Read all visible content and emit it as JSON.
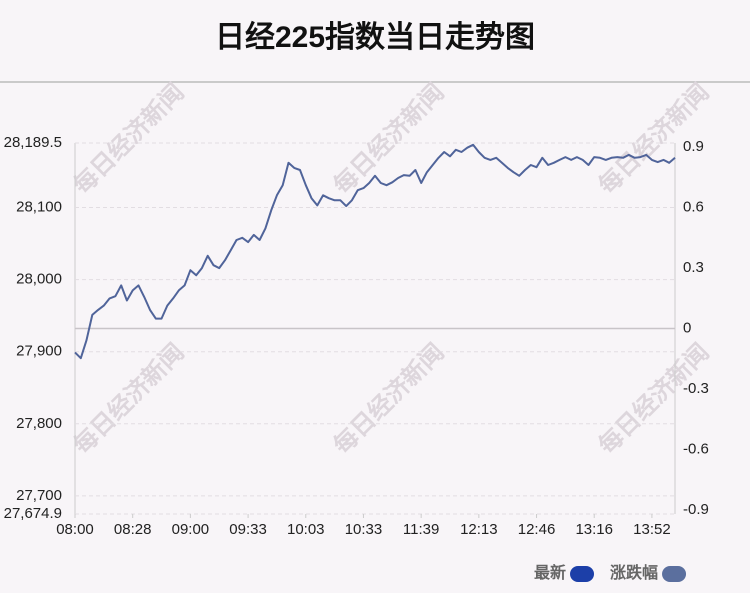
{
  "chart_data": {
    "type": "line",
    "title": "日经225指数当日走势图",
    "watermark": "每日经济新闻",
    "series": [
      {
        "name": "最新",
        "color": "#50649a",
        "values": [
          27899,
          27891,
          27916,
          27951,
          27958,
          27964,
          27974,
          27977,
          27992,
          27971,
          27985,
          27992,
          27976,
          27958,
          27946,
          27946,
          27964,
          27974,
          27985,
          27992,
          28013,
          28006,
          28016,
          28033,
          28020,
          28016,
          28027,
          28041,
          28055,
          28058,
          28052,
          28062,
          28055,
          28071,
          28096,
          28117,
          28131,
          28162,
          28155,
          28152,
          28131,
          28113,
          28103,
          28117,
          28113,
          28110,
          28110,
          28102,
          28110,
          28124,
          28127,
          28134,
          28144,
          28134,
          28131,
          28135,
          28141,
          28145,
          28144,
          28152,
          28134,
          28149,
          28159,
          28169,
          28177,
          28171,
          28180,
          28177,
          28183,
          28187,
          28177,
          28169,
          28166,
          28169,
          28162,
          28155,
          28149,
          28144,
          28152,
          28159,
          28156,
          28169,
          28159,
          28162,
          28166,
          28170,
          28166,
          28170,
          28166,
          28159,
          28170,
          28169,
          28166,
          28169,
          28170,
          28169,
          28173,
          28169,
          28170,
          28173,
          28166,
          28163,
          28166,
          28162,
          28169
        ]
      }
    ],
    "legend": [
      {
        "name": "最新",
        "color": "#1c3fa8"
      },
      {
        "name": "涨跌幅",
        "color": "#5b6f9e"
      }
    ],
    "xlim": [
      0,
      104
    ],
    "xticks": [
      {
        "value": 0,
        "label": "08:00"
      },
      {
        "value": 10,
        "label": "08:28"
      },
      {
        "value": 20,
        "label": "09:00"
      },
      {
        "value": 30,
        "label": "09:33"
      },
      {
        "value": 40,
        "label": "10:03"
      },
      {
        "value": 50,
        "label": "10:33"
      },
      {
        "value": 60,
        "label": "11:39"
      },
      {
        "value": 70,
        "label": "12:13"
      },
      {
        "value": 80,
        "label": "12:46"
      },
      {
        "value": 90,
        "label": "13:16"
      },
      {
        "value": 100,
        "label": "13:52"
      }
    ],
    "ylim": [
      27674.9,
      28189.5
    ],
    "yticks": [
      {
        "value": 28189.5,
        "label": "28,189.5"
      },
      {
        "value": 28100,
        "label": "28,100"
      },
      {
        "value": 28000,
        "label": "28,000"
      },
      {
        "value": 27900,
        "label": "27,900"
      },
      {
        "value": 27800,
        "label": "27,800"
      },
      {
        "value": 27700,
        "label": "27,700"
      },
      {
        "value": 27674.9,
        "label": "27,674.9"
      }
    ],
    "y2lim": [
      -0.92,
      0.92
    ],
    "y2ticks": [
      0.9,
      0.6,
      0.3,
      0,
      -0.3,
      -0.6,
      -0.9
    ],
    "grid": true
  }
}
